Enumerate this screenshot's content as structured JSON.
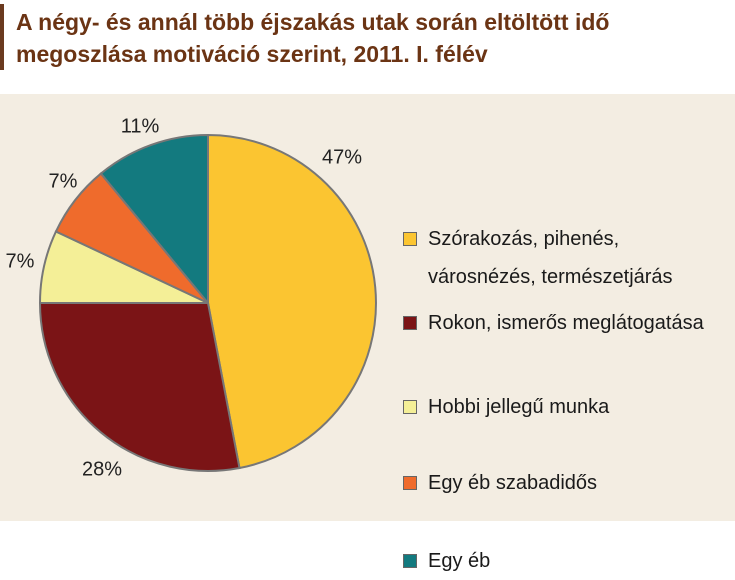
{
  "title": "A négy- és annál több éjszakás utak során eltöltött idő\nmegoszlása motiváció szerint, 2011. I. félév",
  "chart_data": {
    "type": "pie",
    "title": "A négy- és annál több éjszakás utak során eltöltött idő megoszlása motiváció szerint, 2011. I. félév",
    "start_angle_deg": 0,
    "direction": "clockwise",
    "legend_position": "right",
    "slices": [
      {
        "label": "Szórakozás, pihenés,\nvárosnézés, természetjárás",
        "value": 47,
        "display": "47%",
        "color": "#fbc531"
      },
      {
        "label": "Rokon, ismerős meglátogatása",
        "value": 28,
        "display": "28%",
        "color": "#7b1416"
      },
      {
        "label": "Hobbi jellegű munka",
        "value": 7,
        "display": "7%",
        "color": "#f4ef97"
      },
      {
        "label": "Egy éb szabadidős",
        "value": 7,
        "display": "7%",
        "color": "#ef6b2c"
      },
      {
        "label": "Egy éb",
        "value": 11,
        "display": "11%",
        "color": "#137a7f"
      }
    ]
  }
}
